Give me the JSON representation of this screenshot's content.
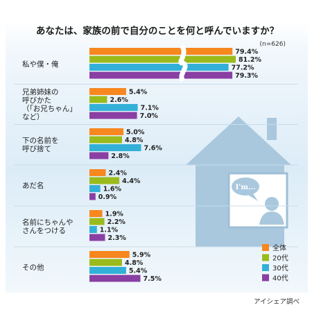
{
  "chart_data": {
    "type": "bar",
    "orientation": "horizontal",
    "title": "あなたは、家族の前で自分のことを何と呼んでいますか？",
    "subtitle": "(n=626)",
    "source": "アイシェア調べ",
    "bubble_text": "I'm...",
    "categories": [
      {
        "lines": [
          "私や僕・俺"
        ]
      },
      {
        "lines": [
          "兄弟姉妹の",
          "呼びかた",
          "（「お兄ちゃん」",
          "など）"
        ]
      },
      {
        "lines": [
          "下の名前を",
          "呼び捨て"
        ]
      },
      {
        "lines": [
          "あだ名"
        ]
      },
      {
        "lines": [
          "名前にちゃんや",
          "さんをつける"
        ]
      },
      {
        "lines": [
          "その他"
        ]
      }
    ],
    "series": [
      {
        "name": "全体",
        "color": "#f7871f",
        "values": [
          79.4,
          5.4,
          5.0,
          2.4,
          1.9,
          5.9
        ],
        "labels": [
          "79.4%",
          "5.4%",
          "5.0%",
          "2.4%",
          "1.9%",
          "5.9%"
        ]
      },
      {
        "name": "20代",
        "color": "#9bbb1c",
        "values": [
          81.2,
          2.6,
          4.8,
          4.4,
          2.2,
          4.8
        ],
        "labels": [
          "81.2%",
          "2.6%",
          "4.8%",
          "4.4%",
          "2.2%",
          "4.8%"
        ]
      },
      {
        "name": "30代",
        "color": "#33b0d8",
        "values": [
          77.2,
          7.1,
          7.6,
          1.6,
          1.1,
          5.4
        ],
        "labels": [
          "77.2%",
          "7.1%",
          "7.6%",
          "1.6%",
          "1.1%",
          "5.4%"
        ]
      },
      {
        "name": "40代",
        "color": "#8a3fa3",
        "values": [
          79.3,
          7.0,
          2.8,
          0.9,
          2.3,
          7.5
        ],
        "labels": [
          "79.3%",
          "7.0%",
          "2.8%",
          "0.9%",
          "2.3%",
          "7.5%"
        ]
      }
    ],
    "axis_break": true,
    "legend_position": "bottom-right",
    "grid": false
  }
}
